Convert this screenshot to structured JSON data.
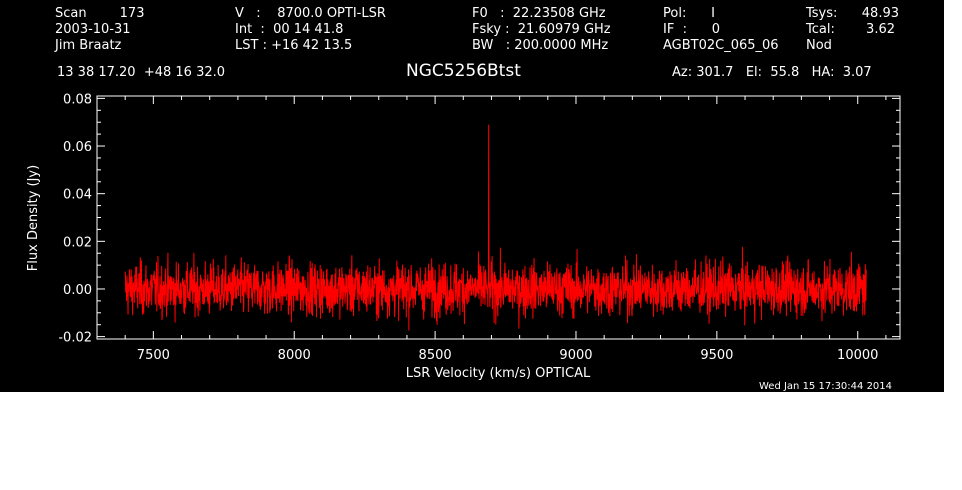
{
  "header": {
    "col1": [
      "Scan        173",
      "2003-10-31",
      "Jim Braatz"
    ],
    "col2": [
      "V   :    8700.0 OPTI-LSR",
      "Int  :  00 14 41.8",
      "LST : +16 42 13.5"
    ],
    "col3": [
      "F0   :  22.23508 GHz",
      "Fsky :  21.60979 GHz",
      "BW   : 200.0000 MHz"
    ],
    "col4": [
      "Pol:      I",
      "IF  :      0",
      "AGBT02C_065_06"
    ],
    "col5": [
      "Tsys:",
      "Tcal:",
      "Nod"
    ],
    "col6": [
      "48.93",
      "3.62",
      ""
    ],
    "coords": "13 38 17.20  +48 16 32.0",
    "title": "NGC5256Btst",
    "azel": "Az: 301.7   El:  55.8   HA:  3.07",
    "timestamp": "Wed Jan 15 17:30:44 2014"
  },
  "chart_data": {
    "type": "line",
    "xlabel": "LSR Velocity (km/s) OPTICAL",
    "ylabel": "Flux Density (Jy)",
    "xlim": [
      7300,
      10150
    ],
    "ylim": [
      -0.021,
      0.081
    ],
    "xticks": [
      7500,
      8000,
      8500,
      9000,
      9500,
      10000
    ],
    "xtick_labels": [
      "7500",
      "8000",
      "8500",
      "9000",
      "9500",
      "10000"
    ],
    "yticks": [
      -0.02,
      0.0,
      0.02,
      0.04,
      0.06,
      0.08
    ],
    "ytick_labels": [
      "-0.02",
      "0.00",
      "0.02",
      "0.04",
      "0.06",
      "0.08"
    ],
    "series": [
      {
        "color": "#ff0000",
        "x_start": 7400,
        "x_end": 10030,
        "noise_rms": 0.0055,
        "baseline": 0.0,
        "spike": {
          "x": 8690,
          "y": 0.069
        }
      }
    ],
    "colors": {
      "background": "#000000",
      "axes": "#ffffff",
      "trace": "#ff0000"
    }
  }
}
